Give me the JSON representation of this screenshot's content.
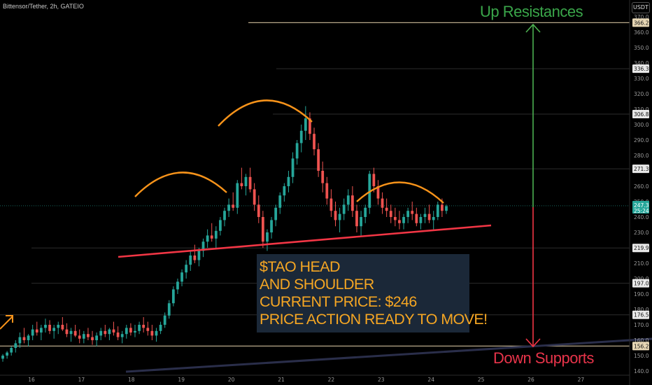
{
  "header": {
    "symbol": "Bittensor/Tether, 2h, GATEIO",
    "currency": "USDT"
  },
  "annotations": {
    "up_label": "Up Resistances",
    "down_label": "Down Supports",
    "note_lines": [
      "$TAO HEAD",
      "AND SHOULDER",
      "CURRENT PRICE: $246",
      "PRICE ACTION READY TO MOVE!"
    ]
  },
  "colors": {
    "up": "#26a69a",
    "down": "#ef5350",
    "arc": "#f7931a",
    "neckline": "#f23645",
    "green_arrow": "#4caf50",
    "red_arrow": "#f23645",
    "label_box": "#1b2838",
    "label_text": "#f5a623"
  },
  "chart_data": {
    "type": "candlestick",
    "title": "Bittensor/Tether, 2h, GATEIO",
    "x_ticks": [
      "16",
      "17",
      "18",
      "19",
      "20",
      "21",
      "22",
      "23",
      "24",
      "25",
      "26",
      "27"
    ],
    "y_ticks": [
      370,
      360,
      350,
      340,
      330,
      320,
      310,
      300,
      290,
      280,
      270,
      260,
      250,
      240,
      230,
      220,
      210,
      200,
      190,
      180,
      170,
      160,
      150,
      140
    ],
    "ylim": [
      138,
      372
    ],
    "price_levels": [
      366.2,
      336.3,
      306.8,
      271.3,
      219.9,
      197.0,
      176.5,
      156.2
    ],
    "current_price": "247.3",
    "countdown": "25:24",
    "ohlc_approx": [
      [
        148,
        151,
        146,
        150
      ],
      [
        150,
        153,
        148,
        152
      ],
      [
        152,
        156,
        150,
        155
      ],
      [
        155,
        160,
        152,
        158
      ],
      [
        158,
        165,
        155,
        162
      ],
      [
        162,
        168,
        158,
        160
      ],
      [
        160,
        164,
        156,
        163
      ],
      [
        163,
        170,
        160,
        167
      ],
      [
        167,
        172,
        163,
        165
      ],
      [
        165,
        170,
        160,
        168
      ],
      [
        168,
        174,
        165,
        170
      ],
      [
        170,
        173,
        164,
        166
      ],
      [
        166,
        170,
        161,
        168
      ],
      [
        168,
        172,
        164,
        170
      ],
      [
        170,
        175,
        166,
        167
      ],
      [
        167,
        171,
        162,
        164
      ],
      [
        164,
        168,
        159,
        166
      ],
      [
        166,
        170,
        162,
        163
      ],
      [
        163,
        167,
        158,
        161
      ],
      [
        161,
        166,
        158,
        164
      ],
      [
        164,
        168,
        160,
        162
      ],
      [
        162,
        166,
        157,
        160
      ],
      [
        160,
        165,
        156,
        163
      ],
      [
        163,
        168,
        160,
        166
      ],
      [
        166,
        170,
        162,
        164
      ],
      [
        164,
        168,
        160,
        167
      ],
      [
        167,
        172,
        163,
        165
      ],
      [
        165,
        169,
        160,
        162
      ],
      [
        162,
        166,
        158,
        164
      ],
      [
        164,
        170,
        161,
        168
      ],
      [
        168,
        171,
        163,
        165
      ],
      [
        165,
        170,
        162,
        166
      ],
      [
        166,
        172,
        164,
        170
      ],
      [
        170,
        175,
        165,
        168
      ],
      [
        168,
        172,
        163,
        166
      ],
      [
        166,
        170,
        160,
        163
      ],
      [
        163,
        168,
        159,
        166
      ],
      [
        166,
        172,
        164,
        170
      ],
      [
        170,
        178,
        168,
        176
      ],
      [
        176,
        186,
        174,
        184
      ],
      [
        184,
        195,
        182,
        193
      ],
      [
        193,
        200,
        190,
        198
      ],
      [
        198,
        206,
        195,
        204
      ],
      [
        204,
        212,
        200,
        209
      ],
      [
        209,
        218,
        205,
        215
      ],
      [
        215,
        222,
        210,
        212
      ],
      [
        212,
        220,
        208,
        218
      ],
      [
        218,
        226,
        214,
        224
      ],
      [
        224,
        232,
        220,
        228
      ],
      [
        228,
        236,
        224,
        226
      ],
      [
        226,
        234,
        220,
        231
      ],
      [
        231,
        240,
        228,
        238
      ],
      [
        238,
        246,
        234,
        244
      ],
      [
        244,
        252,
        240,
        248
      ],
      [
        248,
        256,
        244,
        246
      ],
      [
        246,
        264,
        242,
        262
      ],
      [
        262,
        272,
        258,
        260
      ],
      [
        260,
        268,
        254,
        266
      ],
      [
        266,
        272,
        256,
        258
      ],
      [
        258,
        262,
        244,
        248
      ],
      [
        248,
        254,
        236,
        240
      ],
      [
        240,
        244,
        220,
        224
      ],
      [
        224,
        232,
        218,
        230
      ],
      [
        230,
        240,
        226,
        238
      ],
      [
        238,
        248,
        234,
        246
      ],
      [
        246,
        256,
        242,
        254
      ],
      [
        254,
        262,
        250,
        260
      ],
      [
        260,
        270,
        256,
        266
      ],
      [
        266,
        282,
        262,
        278
      ],
      [
        278,
        290,
        274,
        288
      ],
      [
        288,
        300,
        282,
        296
      ],
      [
        296,
        312,
        290,
        304
      ],
      [
        304,
        308,
        290,
        294
      ],
      [
        294,
        298,
        280,
        284
      ],
      [
        284,
        288,
        266,
        270
      ],
      [
        270,
        276,
        256,
        262
      ],
      [
        262,
        266,
        248,
        252
      ],
      [
        252,
        258,
        240,
        244
      ],
      [
        244,
        250,
        234,
        238
      ],
      [
        238,
        246,
        230,
        242
      ],
      [
        242,
        252,
        238,
        248
      ],
      [
        248,
        258,
        244,
        254
      ],
      [
        254,
        260,
        240,
        244
      ],
      [
        244,
        248,
        230,
        234
      ],
      [
        234,
        244,
        228,
        240
      ],
      [
        240,
        248,
        236,
        246
      ],
      [
        246,
        270,
        242,
        268
      ],
      [
        268,
        272,
        256,
        260
      ],
      [
        260,
        264,
        248,
        252
      ],
      [
        252,
        256,
        242,
        246
      ],
      [
        246,
        252,
        240,
        244
      ],
      [
        244,
        248,
        236,
        240
      ],
      [
        240,
        246,
        234,
        238
      ],
      [
        238,
        244,
        232,
        236
      ],
      [
        236,
        242,
        232,
        240
      ],
      [
        240,
        246,
        236,
        244
      ],
      [
        244,
        250,
        238,
        242
      ],
      [
        242,
        246,
        234,
        236
      ],
      [
        236,
        242,
        232,
        240
      ],
      [
        240,
        246,
        236,
        242
      ],
      [
        242,
        248,
        236,
        238
      ],
      [
        238,
        244,
        232,
        240
      ],
      [
        240,
        250,
        238,
        248
      ],
      [
        248,
        252,
        240,
        244
      ],
      [
        244,
        248,
        242,
        247
      ]
    ]
  }
}
